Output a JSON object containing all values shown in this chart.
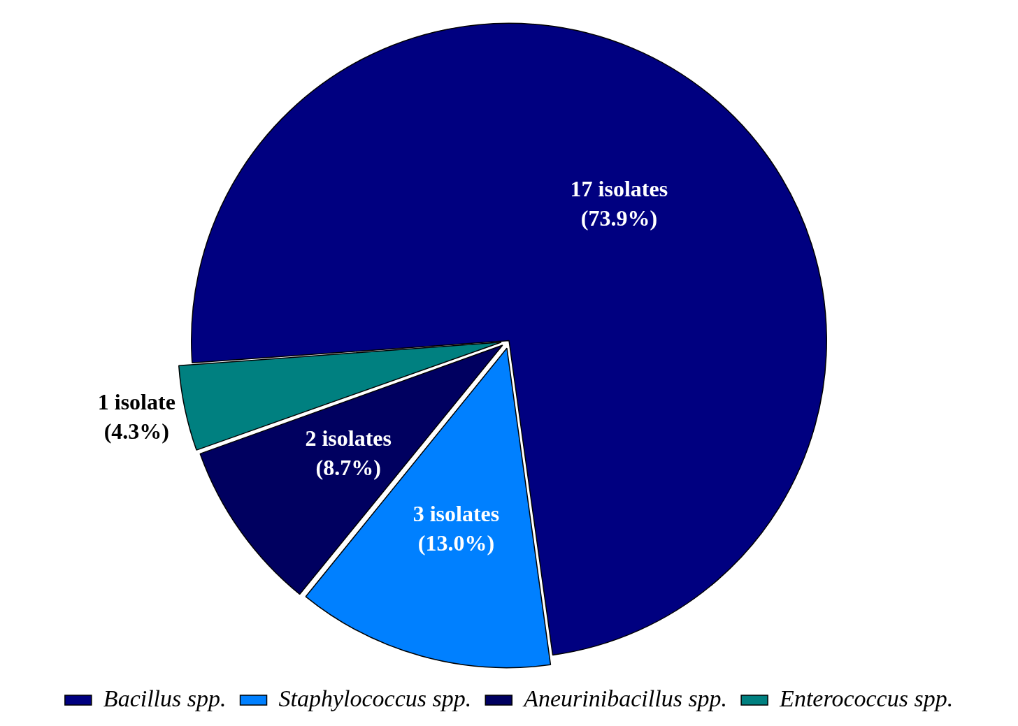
{
  "chart_data": {
    "type": "pie",
    "categories": [
      "Bacillus spp.",
      "Staphylococcus spp.",
      "Aneurinibacillus spp.",
      "Enterococcus spp."
    ],
    "values": [
      17,
      3,
      2,
      1
    ],
    "colors": [
      "#000080",
      "#0080ff",
      "#000060",
      "#008080"
    ],
    "value_labels": [
      "17 isolates\n(73.9%)",
      "3 isolates\n(13.0%)",
      "2 isolates\n(8.7%)",
      "1 isolate\n(4.3%)"
    ],
    "legend": "bottom"
  }
}
